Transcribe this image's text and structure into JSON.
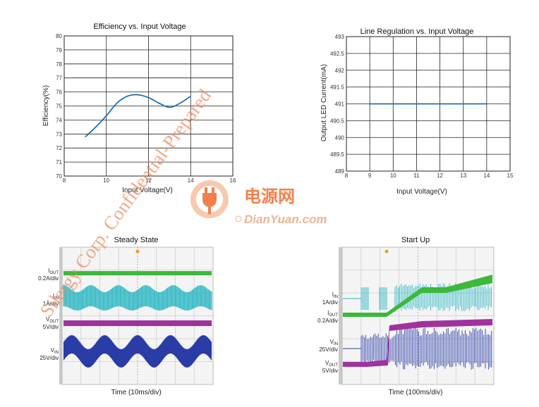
{
  "chart_data": [
    {
      "type": "line",
      "title": "Efficiency vs. Input Voltage",
      "xlabel": "Input Voltage(V)",
      "ylabel": "Efficiency(%)",
      "xlim": [
        8,
        16
      ],
      "ylim": [
        70,
        80
      ],
      "xticks": [
        "8",
        "10",
        "12",
        "14",
        "16"
      ],
      "yticks": [
        "70",
        "71",
        "72",
        "73",
        "74",
        "75",
        "76",
        "77",
        "78",
        "79",
        "80"
      ],
      "grid": true,
      "color": "#1f6fb4",
      "x": [
        9,
        9.5,
        10,
        10.5,
        11,
        11.5,
        12,
        12.5,
        13,
        13.5,
        14
      ],
      "y": [
        72.8,
        73.5,
        74.3,
        75.2,
        75.7,
        75.8,
        75.6,
        75.2,
        74.9,
        75.2,
        75.7
      ]
    },
    {
      "type": "line",
      "title": "Line Regulation vs. Input Voltage",
      "xlabel": "Input Voltage(V)",
      "ylabel": "Output LED Current(mA)",
      "xlim": [
        8,
        15
      ],
      "ylim": [
        489,
        493
      ],
      "xticks": [
        "8",
        "9",
        "10",
        "11",
        "12",
        "13",
        "14",
        "15"
      ],
      "yticks": [
        "489",
        "489.5",
        "490",
        "490.5",
        "491",
        "491.5",
        "492",
        "492.5",
        "493"
      ],
      "grid": true,
      "color": "#1f6fb4",
      "x": [
        9,
        10,
        11,
        12,
        13,
        14
      ],
      "y": [
        491,
        491,
        491,
        491,
        491,
        491
      ]
    }
  ],
  "scopes": [
    {
      "title": "Steady State",
      "xlabel": "Time (10ms/div)",
      "channels": [
        {
          "name": "I",
          "sub": "OUT",
          "scale": "0.2A/div",
          "color": "#3cb83a"
        },
        {
          "name": "I",
          "sub": "IN",
          "scale": "1A/div",
          "color": "#2fb8c4"
        },
        {
          "name": "V",
          "sub": "OUT",
          "scale": "5V/div",
          "color": "#a0329c"
        },
        {
          "name": "V",
          "sub": "IN",
          "scale": "25V/div",
          "color": "#2a3ca6"
        }
      ]
    },
    {
      "title": "Start Up",
      "xlabel": "Time (100ms/div)",
      "channels": [
        {
          "name": "I",
          "sub": "IN",
          "scale": "1A/div",
          "color": "#2fb8c4"
        },
        {
          "name": "I",
          "sub": "OUT",
          "scale": "0.2A/div",
          "color": "#3cb83a"
        },
        {
          "name": "V",
          "sub": "IN",
          "scale": "25V/div",
          "color": "#2a3ca6"
        },
        {
          "name": "V",
          "sub": "OUT",
          "scale": "5V/div",
          "color": "#a0329c"
        }
      ]
    }
  ],
  "watermark": {
    "text": "Silergy Corp. Confidential-Prepared",
    "logo_cn": "电源网",
    "logo_en": "DianYuan.com"
  }
}
